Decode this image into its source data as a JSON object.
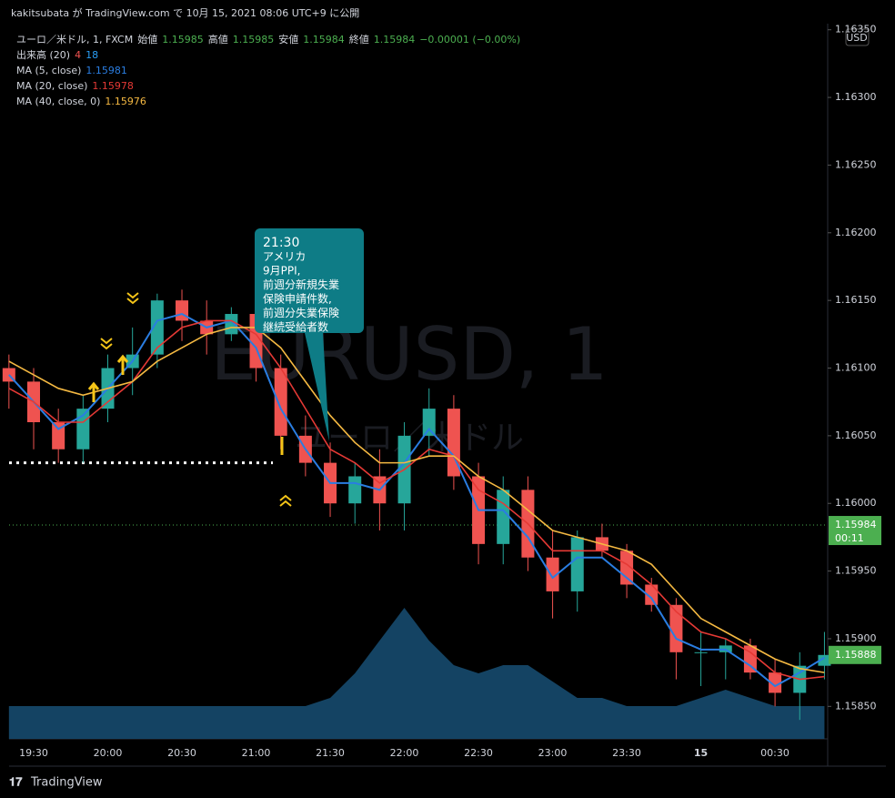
{
  "header": {
    "publisher": "kakitsubata が TradingView.com で 10月 15, 2021 08:06 UTC+9 に公開",
    "logo": "TradingView"
  },
  "chart_data": {
    "type": "candlestick",
    "legend": {
      "symbol": "ユーロ／米ドル, 1, FXCM",
      "open_label": "始値",
      "open": 1.15985,
      "high_label": "高値",
      "high": 1.15985,
      "low_label": "安値",
      "low": 1.15984,
      "close_label": "終値",
      "close": 1.15984,
      "change": "−0.00001 (−0.00%)",
      "volume_label": "出来高 (20)",
      "volume_now": 4,
      "volume_ma": 18
    },
    "watermark": "EURUSD, 1",
    "watermark_sub": "ユーロ／米ドル",
    "currency": "USD",
    "annotation": [
      "21:30",
      "アメリカ",
      "9月PPI,",
      "前週分新規失業",
      "保険申請件数,",
      "前週分失業保険",
      "継続受給者数"
    ],
    "xticks": [
      "19:30",
      "20:00",
      "20:30",
      "21:00",
      "21:30",
      "22:00",
      "22:30",
      "23:00",
      "23:30",
      "15",
      "00:30"
    ],
    "ylim": [
      1.15826,
      1.16372
    ],
    "yticks": [
      {
        "value": 1.1585,
        "label": "1.15850"
      },
      {
        "value": 1.159,
        "label": "1.15900"
      },
      {
        "value": 1.1595,
        "label": "1.15950"
      },
      {
        "value": 1.16,
        "label": "1.16000"
      },
      {
        "value": 1.1605,
        "label": "1.16050"
      },
      {
        "value": 1.161,
        "label": "1.16100"
      },
      {
        "value": 1.1615,
        "label": "1.16150"
      },
      {
        "value": 1.162,
        "label": "1.16200"
      },
      {
        "value": 1.1625,
        "label": "1.16250"
      },
      {
        "value": 1.163,
        "label": "1.16300"
      },
      {
        "value": 1.1635,
        "label": "1.16350"
      }
    ],
    "up_color": "#26a69a",
    "down_color": "#ef5350",
    "open": [
      1.161,
      1.1609,
      1.1606,
      1.1604,
      1.1607,
      1.161,
      1.1611,
      1.1615,
      1.16135,
      1.16125,
      1.1614,
      1.161,
      1.1605,
      1.1603,
      1.16,
      1.1602,
      1.16,
      1.1605,
      1.1607,
      1.1602,
      1.1597,
      1.1601,
      1.1596,
      1.15935,
      1.15975,
      1.15965,
      1.1594,
      1.15925,
      1.1589,
      1.1589,
      1.15895,
      1.15875,
      1.1586,
      1.1588
    ],
    "high": [
      1.1611,
      1.161,
      1.1607,
      1.1608,
      1.1611,
      1.1613,
      1.16155,
      1.16158,
      1.1615,
      1.16145,
      1.16142,
      1.1611,
      1.16065,
      1.16045,
      1.1603,
      1.1604,
      1.1606,
      1.16085,
      1.1608,
      1.1603,
      1.1602,
      1.1602,
      1.1598,
      1.1598,
      1.15985,
      1.1597,
      1.15945,
      1.1593,
      1.15905,
      1.159,
      1.159,
      1.15885,
      1.1589,
      1.15905
    ],
    "low": [
      1.1607,
      1.1604,
      1.1603,
      1.1603,
      1.1606,
      1.1608,
      1.161,
      1.1612,
      1.1611,
      1.1612,
      1.1609,
      1.1604,
      1.1602,
      1.1599,
      1.15985,
      1.1598,
      1.1598,
      1.16035,
      1.1601,
      1.15955,
      1.15955,
      1.1595,
      1.15915,
      1.1592,
      1.1596,
      1.1593,
      1.1592,
      1.1587,
      1.15865,
      1.1587,
      1.1587,
      1.1585,
      1.1584,
      1.1587
    ],
    "close": [
      1.1609,
      1.1606,
      1.1604,
      1.1607,
      1.161,
      1.1611,
      1.1615,
      1.16135,
      1.16125,
      1.1614,
      1.161,
      1.1605,
      1.1603,
      1.16,
      1.1602,
      1.16,
      1.1605,
      1.1607,
      1.1602,
      1.1597,
      1.1601,
      1.1596,
      1.15935,
      1.15975,
      1.15965,
      1.1594,
      1.15925,
      1.1589,
      1.1589,
      1.15895,
      1.15875,
      1.1586,
      1.1588,
      1.15888
    ],
    "current_price": 1.15984,
    "current_countdown": "00:11",
    "last_price_label": 1.15888,
    "dotted_level": 1.1603,
    "series": [
      {
        "name": "MA (5, close)",
        "color": "#2a7de1",
        "values": [
          1.16095,
          1.16075,
          1.16055,
          1.16065,
          1.16085,
          1.16105,
          1.16135,
          1.1614,
          1.1613,
          1.16135,
          1.16115,
          1.1607,
          1.1604,
          1.16015,
          1.16015,
          1.1601,
          1.1603,
          1.16055,
          1.16035,
          1.15995,
          1.15995,
          1.15975,
          1.15945,
          1.1596,
          1.1596,
          1.15945,
          1.1593,
          1.159,
          1.15892,
          1.15892,
          1.1588,
          1.15865,
          1.15875,
          1.15886
        ]
      },
      {
        "name": "MA (20, close)",
        "color": "#e53935",
        "values": [
          1.16085,
          1.16075,
          1.1606,
          1.1606,
          1.16075,
          1.1609,
          1.16115,
          1.1613,
          1.16135,
          1.16135,
          1.16125,
          1.161,
          1.1607,
          1.1604,
          1.1603,
          1.16015,
          1.16025,
          1.1604,
          1.16035,
          1.1601,
          1.16,
          1.15985,
          1.15965,
          1.15965,
          1.15965,
          1.15955,
          1.1594,
          1.1592,
          1.15905,
          1.159,
          1.1589,
          1.15875,
          1.1587,
          1.15872
        ]
      },
      {
        "name": "MA (40, close, 0)",
        "color": "#f5b942",
        "values": [
          1.16105,
          1.16095,
          1.16085,
          1.1608,
          1.16085,
          1.1609,
          1.16105,
          1.16115,
          1.16125,
          1.1613,
          1.1613,
          1.16115,
          1.1609,
          1.16065,
          1.16045,
          1.1603,
          1.1603,
          1.16035,
          1.16035,
          1.1602,
          1.1601,
          1.15995,
          1.1598,
          1.15975,
          1.1597,
          1.15965,
          1.15955,
          1.15935,
          1.15915,
          1.15905,
          1.15895,
          1.15885,
          1.15878,
          1.15875
        ]
      }
    ],
    "series_labels": [
      1.15981,
      1.15978,
      1.15976
    ],
    "volume": [
      4,
      4,
      4,
      4,
      4,
      4,
      4,
      4,
      4,
      4,
      4,
      4,
      4,
      5,
      8,
      12,
      16,
      12,
      9,
      8,
      9,
      9,
      7,
      5,
      5,
      4,
      4,
      4,
      5,
      6,
      5,
      4,
      4,
      4
    ],
    "volume_ylim": [
      0,
      20
    ]
  }
}
